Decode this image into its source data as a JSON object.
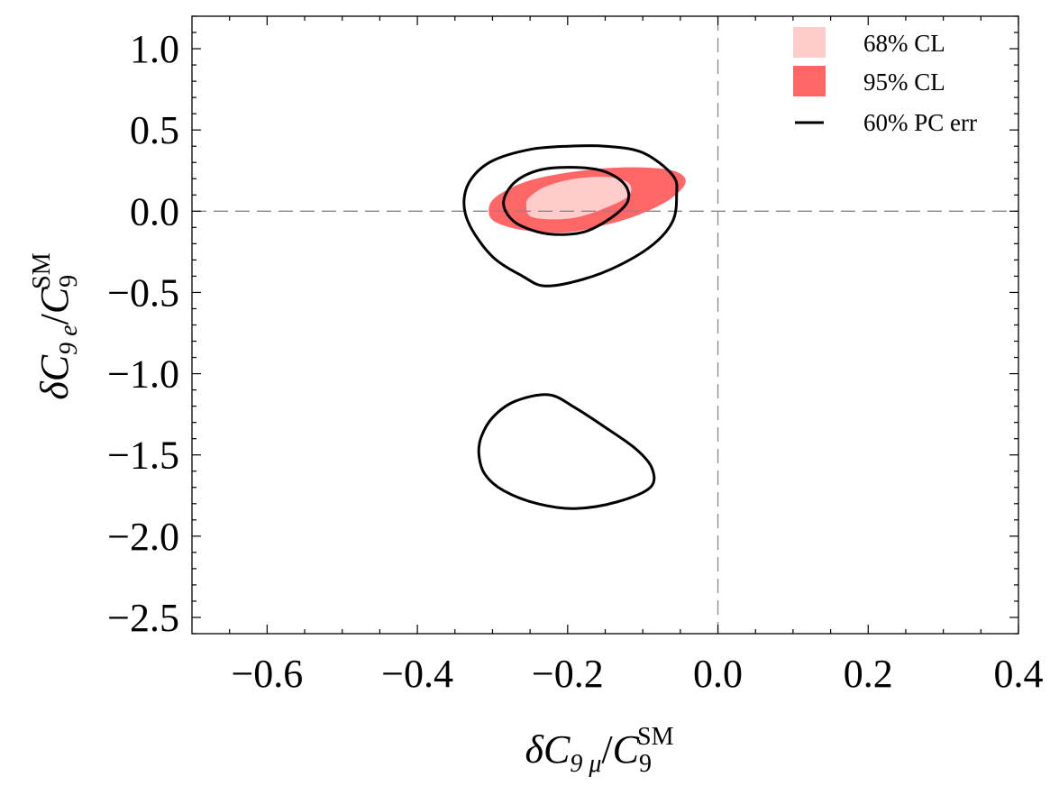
{
  "chart_data": {
    "type": "contour",
    "title": "",
    "xlabel": {
      "delta": "δ",
      "var": "C",
      "sub": "9 μ",
      "slash": "/",
      "den_var": "C",
      "den_sub": "9",
      "den_sup": "SM"
    },
    "ylabel": {
      "delta": "δ",
      "var": "C",
      "sub": "9 e",
      "slash": "/",
      "den_var": "C",
      "den_sub": "9",
      "den_sup": "SM"
    },
    "xlim": [
      -0.7,
      0.4
    ],
    "ylim": [
      -2.6,
      1.2
    ],
    "x_ticks": [
      {
        "value": -0.6,
        "label": "−0.6"
      },
      {
        "value": -0.4,
        "label": "−0.4"
      },
      {
        "value": -0.2,
        "label": "−0.2"
      },
      {
        "value": 0.0,
        "label": "0.0"
      },
      {
        "value": 0.2,
        "label": "0.2"
      },
      {
        "value": 0.4,
        "label": "0.4"
      }
    ],
    "y_ticks": [
      {
        "value": 1.0,
        "label": "1.0"
      },
      {
        "value": 0.5,
        "label": "0.5"
      },
      {
        "value": 0.0,
        "label": "0.0"
      },
      {
        "value": -0.5,
        "label": "−0.5"
      },
      {
        "value": -1.0,
        "label": "−1.0"
      },
      {
        "value": -1.5,
        "label": "−1.5"
      },
      {
        "value": -2.0,
        "label": "−2.0"
      },
      {
        "value": -2.5,
        "label": "−2.5"
      }
    ],
    "x_minor_step": 0.05,
    "y_minor_step": 0.1,
    "reference_lines": {
      "x": 0.0,
      "y": 0.0,
      "style": "dashed",
      "color": "#888888"
    },
    "legend": {
      "position": "top-right",
      "entries": [
        {
          "label": "68% CL",
          "kind": "fill",
          "color": "#ffcccc"
        },
        {
          "label": "95% CL",
          "kind": "fill",
          "color": "#ff6666"
        },
        {
          "label": "60% PC err",
          "kind": "line",
          "color": "#000000"
        }
      ]
    },
    "regions": [
      {
        "name": "95% CL",
        "kind": "fill",
        "color": "#ff6666",
        "points": [
          [
            -0.305,
            0.0
          ],
          [
            -0.295,
            -0.07
          ],
          [
            -0.255,
            -0.12
          ],
          [
            -0.2,
            -0.13
          ],
          [
            -0.155,
            -0.09
          ],
          [
            -0.11,
            -0.03
          ],
          [
            -0.065,
            0.07
          ],
          [
            -0.043,
            0.18
          ],
          [
            -0.06,
            0.25
          ],
          [
            -0.115,
            0.27
          ],
          [
            -0.18,
            0.25
          ],
          [
            -0.25,
            0.19
          ],
          [
            -0.295,
            0.09
          ]
        ]
      },
      {
        "name": "68% CL",
        "kind": "fill",
        "color": "#ffcccc",
        "points": [
          [
            -0.255,
            0.03
          ],
          [
            -0.25,
            -0.03
          ],
          [
            -0.225,
            -0.05
          ],
          [
            -0.19,
            -0.04
          ],
          [
            -0.155,
            0.01
          ],
          [
            -0.12,
            0.09
          ],
          [
            -0.118,
            0.17
          ],
          [
            -0.145,
            0.21
          ],
          [
            -0.19,
            0.2
          ],
          [
            -0.23,
            0.15
          ],
          [
            -0.252,
            0.08
          ]
        ]
      },
      {
        "name": "60% PC err",
        "kind": "line",
        "color": "#000000",
        "points": [
          [
            -0.338,
            0.06
          ],
          [
            -0.33,
            -0.09
          ],
          [
            -0.3,
            -0.28
          ],
          [
            -0.26,
            -0.4
          ],
          [
            -0.23,
            -0.46
          ],
          [
            -0.18,
            -0.42
          ],
          [
            -0.13,
            -0.33
          ],
          [
            -0.085,
            -0.2
          ],
          [
            -0.06,
            -0.06
          ],
          [
            -0.055,
            0.1
          ],
          [
            -0.06,
            0.22
          ],
          [
            -0.1,
            0.36
          ],
          [
            -0.15,
            0.4
          ],
          [
            -0.2,
            0.4
          ],
          [
            -0.25,
            0.38
          ],
          [
            -0.3,
            0.31
          ],
          [
            -0.328,
            0.2
          ]
        ]
      },
      {
        "name": "60% PC err",
        "kind": "line",
        "color": "#000000",
        "points": [
          [
            -0.285,
            0.07
          ],
          [
            -0.28,
            -0.02
          ],
          [
            -0.262,
            -0.09
          ],
          [
            -0.225,
            -0.14
          ],
          [
            -0.18,
            -0.13
          ],
          [
            -0.145,
            -0.05
          ],
          [
            -0.12,
            0.06
          ],
          [
            -0.125,
            0.17
          ],
          [
            -0.155,
            0.25
          ],
          [
            -0.2,
            0.27
          ],
          [
            -0.24,
            0.25
          ],
          [
            -0.27,
            0.18
          ]
        ]
      },
      {
        "name": "60% PC err",
        "kind": "line",
        "color": "#000000",
        "points": [
          [
            -0.318,
            -1.5
          ],
          [
            -0.31,
            -1.62
          ],
          [
            -0.285,
            -1.72
          ],
          [
            -0.24,
            -1.8
          ],
          [
            -0.19,
            -1.83
          ],
          [
            -0.135,
            -1.79
          ],
          [
            -0.09,
            -1.7
          ],
          [
            -0.088,
            -1.58
          ],
          [
            -0.11,
            -1.46
          ],
          [
            -0.15,
            -1.33
          ],
          [
            -0.19,
            -1.21
          ],
          [
            -0.225,
            -1.13
          ],
          [
            -0.27,
            -1.17
          ],
          [
            -0.3,
            -1.27
          ],
          [
            -0.315,
            -1.39
          ]
        ]
      }
    ]
  }
}
